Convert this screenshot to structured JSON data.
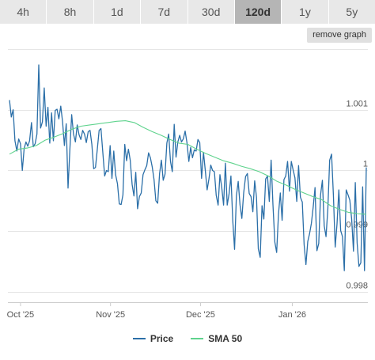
{
  "tabs": [
    {
      "label": "4h",
      "active": false
    },
    {
      "label": "8h",
      "active": false
    },
    {
      "label": "1d",
      "active": false
    },
    {
      "label": "7d",
      "active": false
    },
    {
      "label": "30d",
      "active": false
    },
    {
      "label": "120d",
      "active": true
    },
    {
      "label": "1y",
      "active": false
    },
    {
      "label": "5y",
      "active": false
    }
  ],
  "remove_graph_label": "remove graph",
  "colors": {
    "price": "#2b6fa8",
    "sma": "#5fd38d",
    "grid": "#e6e6e6",
    "axis_text": "#555555"
  },
  "chart_data": {
    "type": "line",
    "x_ticks": [
      "Oct '25",
      "Nov '25",
      "Dec '25",
      "Jan '26"
    ],
    "y_ticks": [
      "1.001",
      "1",
      "0.999",
      "0.998"
    ],
    "y_tick_values": [
      1.001,
      1.0,
      0.999,
      0.998
    ],
    "ylim": [
      0.99783,
      1.002
    ],
    "grid": true,
    "legend": "bottom-center",
    "series": [
      {
        "name": "Price",
        "color": "#2b6fa8",
        "values": [
          1.00116,
          1.00088,
          1.001,
          1.00049,
          1.00032,
          1.00052,
          1.00044,
          1.0,
          1.00036,
          1.00047,
          1.0004,
          1.00049,
          1.00079,
          1.00039,
          1.00044,
          1.0006,
          1.00174,
          1.0007,
          1.0008,
          1.00136,
          1.00073,
          1.00104,
          1.00045,
          1.00095,
          1.00049,
          1.00099,
          1.00101,
          1.00085,
          1.00106,
          1.0008,
          1.00041,
          1.00077,
          0.99971,
          1.00034,
          1.00092,
          1.0006,
          1.00047,
          1.00075,
          1.00059,
          1.00051,
          1.00066,
          1.0006,
          1.00046,
          1.00064,
          1.00066,
          1.00043,
          1.00003,
          1.00005,
          1.00035,
          1.00066,
          1.00069,
          1.00029,
          0.99991,
          1.0,
          0.99998,
          1.00041,
          0.99987,
          1.00032,
          0.99993,
          0.99978,
          0.99945,
          0.99944,
          0.9996,
          1.00043,
          1.00016,
          1.00035,
          1.00017,
          0.99977,
          0.99958,
          0.99997,
          0.99937,
          0.99957,
          0.99963,
          0.99993,
          1.00001,
          1.00008,
          1.00029,
          1.00021,
          1.00006,
          0.99985,
          0.9995,
          0.99946,
          0.99995,
          1.00017,
          0.99984,
          0.99994,
          1.00045,
          1.0006,
          1.00015,
          0.99998,
          1.00076,
          1.00022,
          1.00047,
          1.00058,
          1.00047,
          1.00052,
          1.00065,
          1.00046,
          1.00015,
          1.00038,
          1.00021,
          1.00034,
          1.00032,
          1.00051,
          1.00046,
          0.99987,
          1.0003,
          1.0,
          0.99968,
          0.99986,
          1.00009,
          1.0,
          0.99998,
          0.99959,
          0.99943,
          0.99993,
          0.99972,
          0.99943,
          1.00012,
          0.99943,
          0.99961,
          0.99991,
          0.99918,
          0.9987,
          0.99958,
          0.99982,
          0.99943,
          0.99921,
          0.99963,
          0.9999,
          0.99995,
          0.99962,
          0.99957,
          0.99932,
          0.99983,
          0.99956,
          0.99871,
          0.99857,
          0.99942,
          0.9992,
          0.99986,
          0.99991,
          0.99949,
          1.00017,
          0.99944,
          0.99882,
          0.99865,
          0.99928,
          0.99963,
          0.99918,
          0.99985,
          0.99991,
          1.00015,
          0.99966,
          1.00015,
          1.00001,
          0.99988,
          0.99949,
          1.00008,
          0.99956,
          0.99948,
          0.99878,
          0.99845,
          0.99883,
          0.99896,
          0.99913,
          0.9994,
          0.99972,
          0.99868,
          0.9988,
          0.9996,
          0.99984,
          0.99909,
          0.99891,
          0.99937,
          1.00017,
          1.00027,
          0.9996,
          0.99874,
          0.99912,
          0.99968,
          0.99901,
          0.99891,
          0.99835,
          0.99968,
          0.9996,
          0.99951,
          0.9992,
          0.99867,
          0.9998,
          0.99881,
          0.99842,
          0.99848,
          0.99973,
          0.99835,
          1.00005
        ]
      },
      {
        "name": "SMA 50",
        "color": "#5fd38d",
        "values": [
          1.00027,
          1.00035,
          1.00037,
          1.00041,
          1.0005,
          1.00055,
          1.00061,
          1.00068,
          1.00073,
          1.00075,
          1.00077,
          1.00079,
          1.00081,
          1.00082,
          1.00079,
          1.00071,
          1.00064,
          1.00058,
          1.00051,
          1.00045,
          1.00043,
          1.00035,
          1.00028,
          1.00022,
          1.00016,
          1.00012,
          1.00007,
          1.00003,
          0.99998,
          0.99991,
          0.99982,
          0.99976,
          0.99969,
          0.99963,
          0.99957,
          0.99952,
          0.99942,
          0.99936,
          0.99931,
          0.99929,
          0.99928
        ]
      }
    ]
  }
}
